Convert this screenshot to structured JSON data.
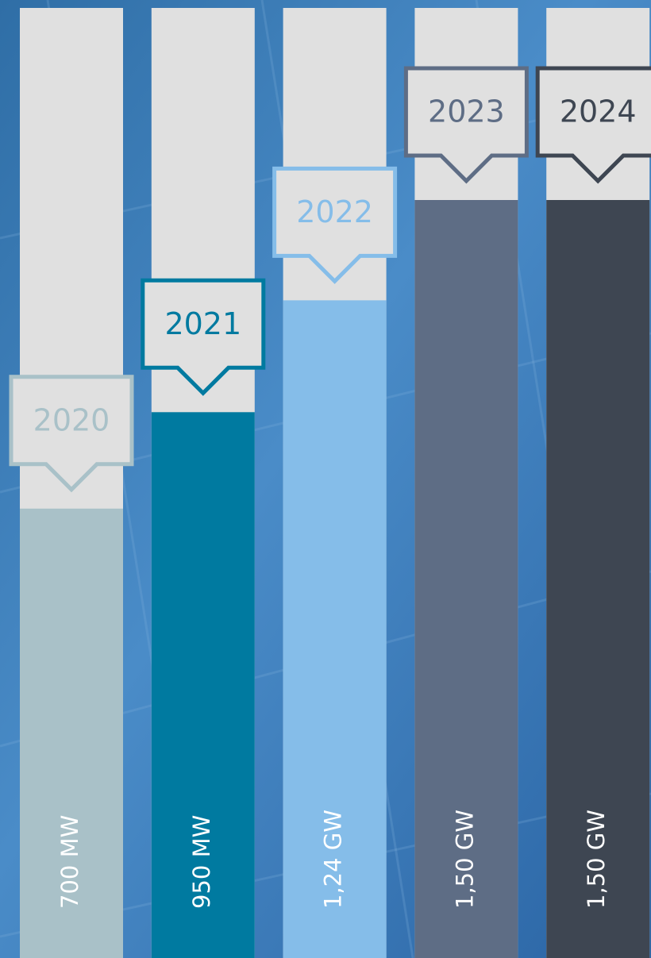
{
  "chart_data": {
    "type": "bar",
    "categories": [
      "2020",
      "2021",
      "2022",
      "2023",
      "2024"
    ],
    "values": [
      700,
      950,
      1240,
      1500,
      1500
    ],
    "value_labels": [
      "700 MW",
      "950 MW",
      "1,24 GW",
      "1,50 GW",
      "1,50 GW"
    ],
    "colors": [
      "#a9c1c8",
      "#007aa0",
      "#85bde9",
      "#5e6d85",
      "#3e4652"
    ]
  }
}
